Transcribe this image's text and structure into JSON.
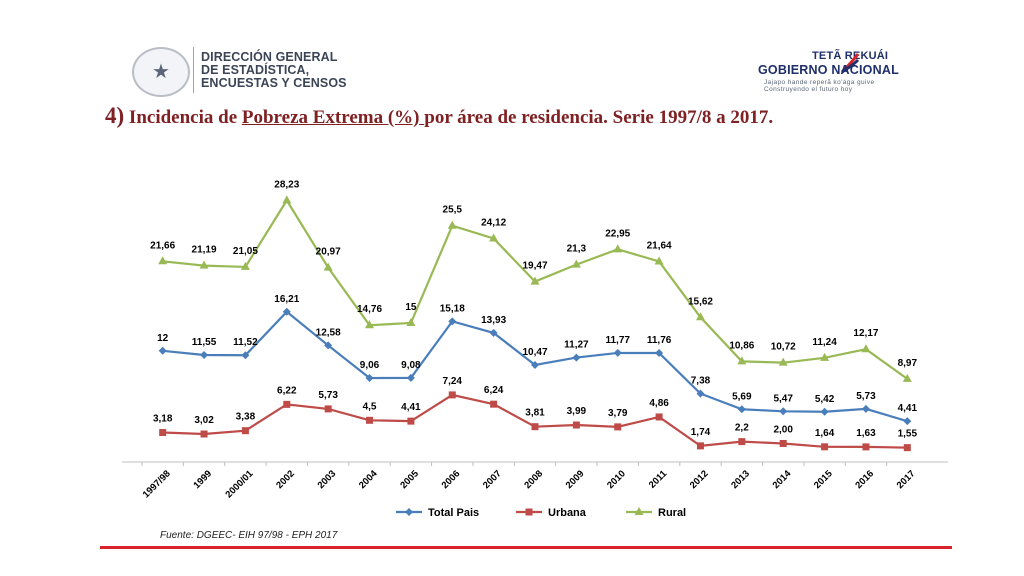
{
  "header": {
    "dgeec_name": "DIRECCIÓN GENERAL\nDE ESTADÍSTICA,\nENCUESTAS Y CENSOS",
    "gov_line1": "TETÃ REKUÁI",
    "gov_line2": "GOBIERNO NACIONAL",
    "gov_line3": "Jajapo hande reperã ko'ága guive",
    "gov_line4": "Construyendo el futuro hoy",
    "icons": [
      "seal-icon",
      "flag-icon"
    ]
  },
  "title": {
    "number": "4)",
    "text_before": " Incidencia de ",
    "underlined": "Pobreza Extrema (%) ",
    "text_after": "por área de residencia. Serie 1997/8 a 2017."
  },
  "source": "Fuente: DGEEC- EIH 97/98 - EPH 2017",
  "colors": {
    "total": "#4a7ebb",
    "urbana": "#be4b48",
    "rural": "#98b954",
    "footer_line": "#d8232a",
    "title": "#7f2023"
  },
  "chart_data": {
    "type": "line",
    "title": "",
    "xlabel": "",
    "ylabel": "",
    "ylim": [
      0,
      30
    ],
    "grid": false,
    "legend_position": "bottom",
    "categories": [
      "1997/98",
      "1999",
      "2000/01",
      "2002",
      "2003",
      "2004",
      "2005",
      "2006",
      "2007",
      "2008",
      "2009",
      "2010",
      "2011",
      "2012",
      "2013",
      "2014",
      "2015",
      "2016",
      "2017"
    ],
    "series": [
      {
        "name": "Total Pais",
        "color": "#4a7ebb",
        "marker": "diamond",
        "values": [
          12,
          11.55,
          11.52,
          16.21,
          12.58,
          9.06,
          9.08,
          15.18,
          13.93,
          10.47,
          11.27,
          11.77,
          11.76,
          7.38,
          5.69,
          5.47,
          5.42,
          5.73,
          4.41
        ],
        "labels": [
          "12",
          "11,55",
          "11,52",
          "16,21",
          "12,58",
          "9,06",
          "9,08",
          "15,18",
          "13,93",
          "10,47",
          "11,27",
          "11,77",
          "11,76",
          "7,38",
          "5,69",
          "5,47",
          "5,42",
          "5,73",
          "4,41"
        ]
      },
      {
        "name": "Urbana",
        "color": "#be4b48",
        "marker": "square",
        "values": [
          3.18,
          3.02,
          3.38,
          6.22,
          5.73,
          4.5,
          4.41,
          7.24,
          6.24,
          3.81,
          3.99,
          3.79,
          4.86,
          1.74,
          2.2,
          2.0,
          1.64,
          1.63,
          1.55
        ],
        "labels": [
          "3,18",
          "3,02",
          "3,38",
          "6,22",
          "5,73",
          "4,5",
          "4,41",
          "7,24",
          "6,24",
          "3,81",
          "3,99",
          "3,79",
          "4,86",
          "1,74",
          "2,2",
          "2,00",
          "1,64",
          "1,63",
          "1,55"
        ]
      },
      {
        "name": "Rural",
        "color": "#98b954",
        "marker": "triangle",
        "values": [
          21.66,
          21.19,
          21.05,
          28.23,
          20.97,
          14.76,
          15,
          25.5,
          24.12,
          19.47,
          21.3,
          22.95,
          21.64,
          15.62,
          10.86,
          10.72,
          11.24,
          12.17,
          8.97
        ],
        "labels": [
          "21,66",
          "21,19",
          "21,05",
          "28,23",
          "20,97",
          "14,76",
          "15",
          "25,5",
          "24,12",
          "19,47",
          "21,3",
          "22,95",
          "21,64",
          "15,62",
          "10,86",
          "10,72",
          "11,24",
          "12,17",
          "8,97"
        ]
      }
    ]
  }
}
